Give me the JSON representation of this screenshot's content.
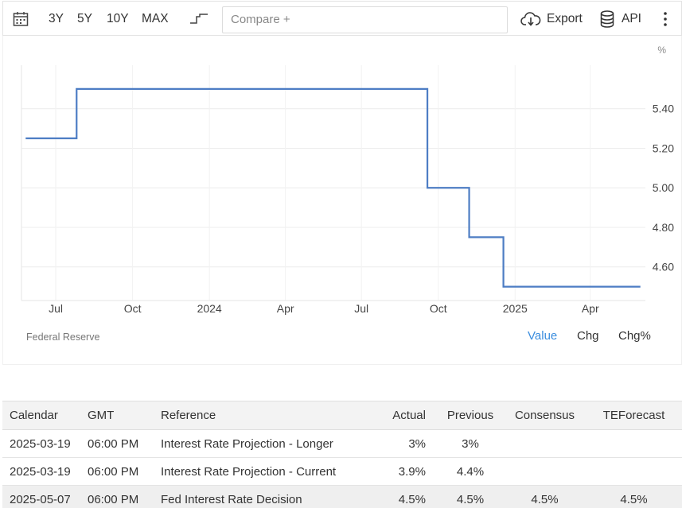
{
  "toolbar": {
    "ranges": [
      "3Y",
      "5Y",
      "10Y",
      "MAX"
    ],
    "compare_placeholder": "Compare +",
    "export_label": "Export",
    "api_label": "API"
  },
  "chart": {
    "unit": "%",
    "source": "Federal Reserve",
    "value_tabs": [
      "Value",
      "Chg",
      "Chg%"
    ],
    "active_tab": "Value",
    "line_color": "#4d7dc4"
  },
  "chart_data": {
    "type": "line",
    "step": true,
    "title": "",
    "xlabel": "",
    "ylabel": "%",
    "x": [
      "2023-05-26",
      "2023-07-26",
      "2024-09-18",
      "2024-11-07",
      "2024-12-18",
      "2025-05-31"
    ],
    "values": [
      5.25,
      5.5,
      5.0,
      4.75,
      4.5,
      4.5
    ],
    "y_ticks": [
      4.6,
      4.8,
      5.0,
      5.2,
      5.4
    ],
    "y_tick_labels": [
      "4.60",
      "4.80",
      "5.00",
      "5.20",
      "5.40"
    ],
    "x_tick_labels": [
      "Jul",
      "Oct",
      "2024",
      "Apr",
      "Jul",
      "Oct",
      "2025",
      "Apr"
    ],
    "ylim": [
      4.43,
      5.62
    ],
    "grid": true
  },
  "table": {
    "headers": [
      "Calendar",
      "GMT",
      "Reference",
      "Actual",
      "Previous",
      "Consensus",
      "TEForecast"
    ],
    "rows": [
      [
        "2025-03-19",
        "06:00 PM",
        "Interest Rate Projection - Longer",
        "3%",
        "3%",
        "",
        ""
      ],
      [
        "2025-03-19",
        "06:00 PM",
        "Interest Rate Projection - Current",
        "3.9%",
        "4.4%",
        "",
        ""
      ],
      [
        "2025-05-07",
        "06:00 PM",
        "Fed Interest Rate Decision",
        "4.5%",
        "4.5%",
        "4.5%",
        "4.5%"
      ]
    ]
  }
}
